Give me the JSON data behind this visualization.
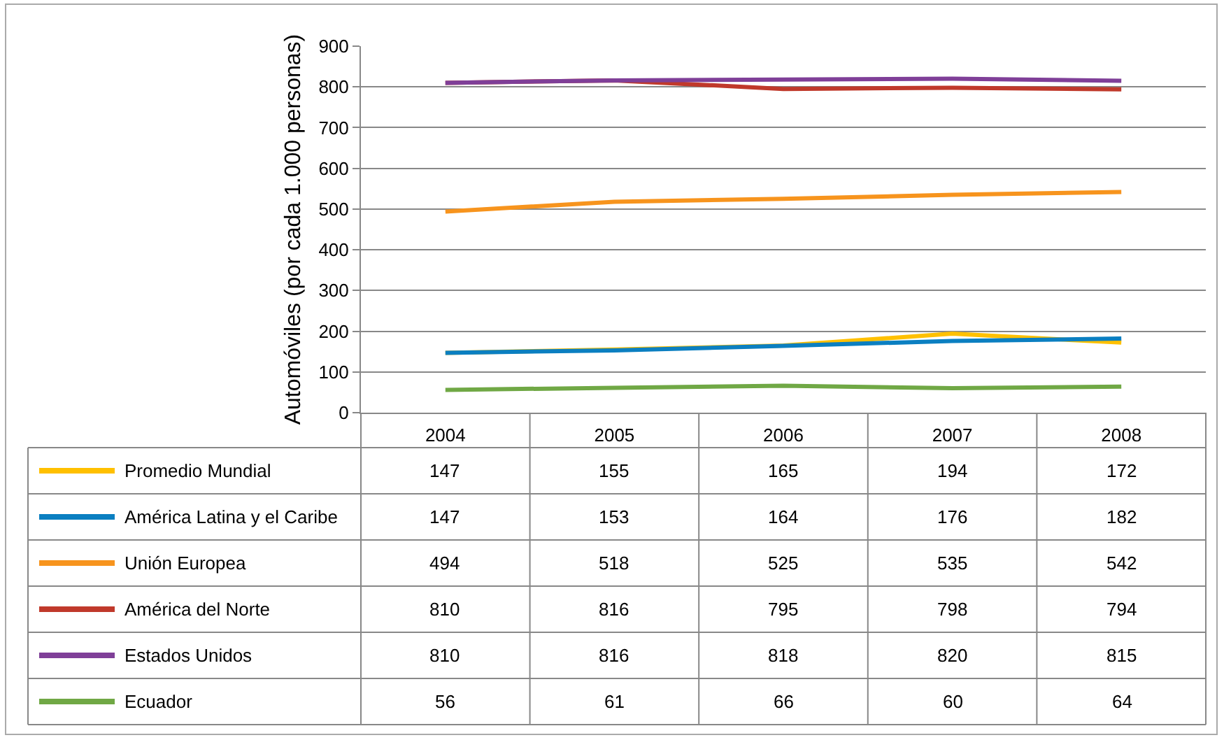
{
  "chart_data": {
    "type": "line",
    "ylabel": "Automóviles (por cada 1.000 personas)",
    "categories": [
      "2004",
      "2005",
      "2006",
      "2007",
      "2008"
    ],
    "series": [
      {
        "name": "Promedio Mundial",
        "color": "#ffc000",
        "values": [
          147,
          155,
          165,
          194,
          172
        ]
      },
      {
        "name": "América Latina y el Caribe",
        "color": "#0b7fc1",
        "values": [
          147,
          153,
          164,
          176,
          182
        ]
      },
      {
        "name": "Unión Europea",
        "color": "#f7941d",
        "values": [
          494,
          518,
          525,
          535,
          542
        ]
      },
      {
        "name": "América del Norte",
        "color": "#c0392b",
        "values": [
          810,
          816,
          795,
          798,
          794
        ]
      },
      {
        "name": "Estados Unidos",
        "color": "#7f3f98",
        "values": [
          810,
          816,
          818,
          820,
          815
        ]
      },
      {
        "name": "Ecuador",
        "color": "#70a845",
        "values": [
          56,
          61,
          66,
          60,
          64
        ]
      }
    ],
    "ylim": [
      0,
      900
    ],
    "yticks": [
      0,
      100,
      200,
      300,
      400,
      500,
      600,
      700,
      800,
      900
    ],
    "grid": "y",
    "legend": "bottom",
    "data_labels": true,
    "marker": "none",
    "line_style": "solid"
  }
}
